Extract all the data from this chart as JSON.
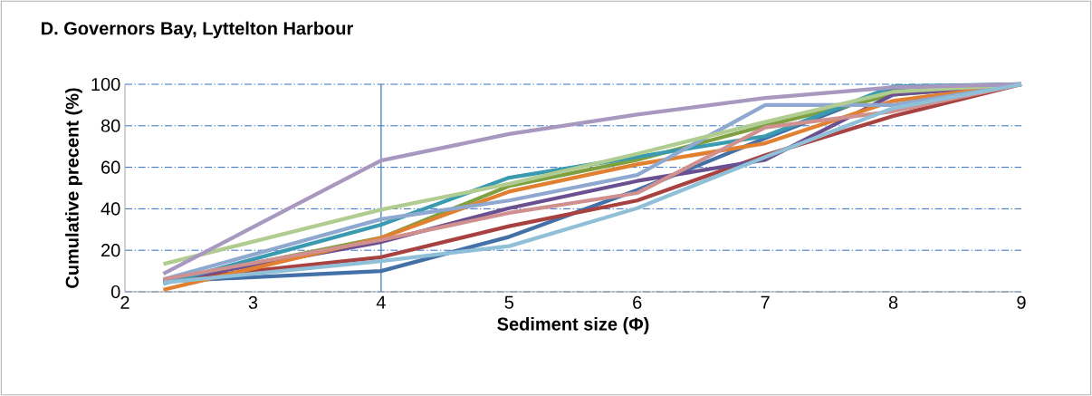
{
  "chart_data": {
    "type": "line",
    "title": "D. Governors Bay, Lyttelton Harbour",
    "xlabel": "Sediment size (Φ)",
    "ylabel": "Cumulative precent (%)",
    "x": [
      2.3,
      4,
      5,
      6,
      7,
      8,
      9
    ],
    "series": [
      {
        "color": "#4470a8",
        "values": [
          5,
          10,
          26.5,
          49,
          74,
          98,
          100
        ]
      },
      {
        "color": "#a84240",
        "values": [
          5.5,
          16.7,
          31.6,
          44,
          65.8,
          84.7,
          100
        ]
      },
      {
        "color": "#7fa040",
        "values": [
          5,
          26,
          51,
          63.6,
          80,
          95,
          100
        ]
      },
      {
        "color": "#6a5090",
        "values": [
          5,
          24,
          40.3,
          53.4,
          63.6,
          95,
          100
        ]
      },
      {
        "color": "#3a9ab0",
        "values": [
          4,
          32.3,
          55,
          65,
          75,
          99,
          100
        ]
      },
      {
        "color": "#e08030",
        "values": [
          1,
          26,
          48.3,
          61.4,
          71.6,
          92,
          100
        ]
      },
      {
        "color": "#8ea8d0",
        "values": [
          6,
          35,
          44,
          56.3,
          90,
          90,
          100
        ]
      },
      {
        "color": "#d09090",
        "values": [
          6,
          25,
          38,
          47.6,
          79.2,
          87,
          100
        ]
      },
      {
        "color": "#b0cc90",
        "values": [
          13.4,
          39.6,
          52,
          66.5,
          81.8,
          96.4,
          100
        ]
      },
      {
        "color": "#a898c0",
        "values": [
          8.7,
          63.3,
          76,
          85.4,
          93.4,
          98.5,
          100
        ]
      },
      {
        "color": "#90c0d8",
        "values": [
          4.4,
          14.8,
          22,
          40.3,
          65,
          88.5,
          100
        ]
      }
    ],
    "xlim": [
      2,
      9
    ],
    "xticks": [
      2,
      3,
      4,
      5,
      6,
      7,
      8,
      9
    ],
    "ylim": [
      0,
      100
    ],
    "yticks": [
      0,
      20,
      40,
      60,
      80,
      100
    ],
    "grid": "y",
    "marker": "none",
    "line_style": "solid",
    "ref_lines": [
      {
        "axis": "x",
        "value": 4,
        "color": "#4f81bd"
      }
    ]
  }
}
